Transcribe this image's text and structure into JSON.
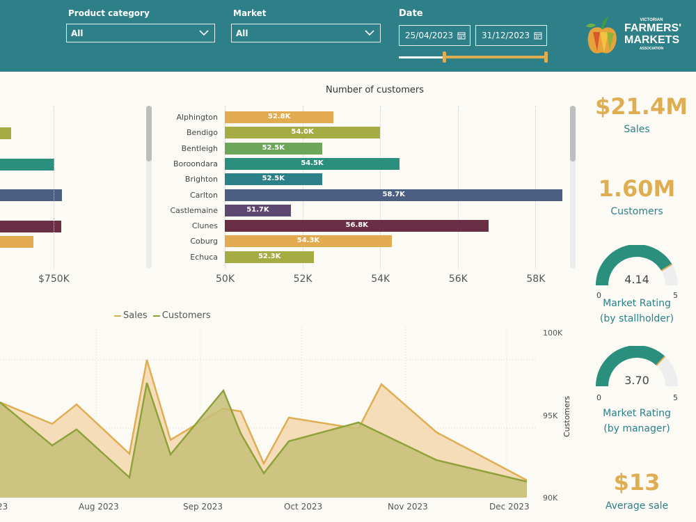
{
  "filters": {
    "product_category": {
      "label": "Product category",
      "value": "All"
    },
    "market": {
      "label": "Market",
      "value": "All"
    },
    "date": {
      "label": "Date",
      "start": "25/04/2023",
      "end": "31/12/2023"
    }
  },
  "logo": {
    "line1": "VICTORIAN",
    "line2": "FARMERS'",
    "line3": "MARKETS",
    "line4": "ASSOCIATION"
  },
  "left_chart": {
    "tick": "$750K",
    "bars": [
      {
        "value": 16,
        "color": "#a5ac43"
      },
      {
        "value": 78,
        "color": "#2a8f7c"
      },
      {
        "value": 89,
        "color": "#4a5f82"
      },
      {
        "value": 88,
        "color": "#6b2f45"
      },
      {
        "value": 48,
        "color": "#e3ab4f"
      }
    ]
  },
  "customers_chart": {
    "title": "Number of customers",
    "ticks": [
      "50K",
      "52K",
      "54K",
      "56K",
      "58K"
    ],
    "bars": [
      {
        "name": "Alphington",
        "value": 52.8,
        "label": "52.8K",
        "color": "#e3ab4f"
      },
      {
        "name": "Bendigo",
        "value": 54.0,
        "label": "54.0K",
        "color": "#a5ac43"
      },
      {
        "name": "Bentleigh",
        "value": 52.5,
        "label": "52.5K",
        "color": "#6da55a"
      },
      {
        "name": "Boroondara",
        "value": 54.5,
        "label": "54.5K",
        "color": "#2a8f7c"
      },
      {
        "name": "Brighton",
        "value": 52.5,
        "label": "52.5K",
        "color": "#2d7f88"
      },
      {
        "name": "Carlton",
        "value": 58.7,
        "label": "58.7K",
        "color": "#4a5f82"
      },
      {
        "name": "Castlemaine",
        "value": 51.7,
        "label": "51.7K",
        "color": "#5d4872"
      },
      {
        "name": "Clunes",
        "value": 56.8,
        "label": "56.8K",
        "color": "#6b2f45"
      },
      {
        "name": "Coburg",
        "value": 54.3,
        "label": "54.3K",
        "color": "#e3ab4f"
      },
      {
        "name": "Echuca",
        "value": 52.3,
        "label": "52.3K",
        "color": "#a5ac43"
      }
    ]
  },
  "kpis": {
    "sales": {
      "value": "$21.4M",
      "label": "Sales"
    },
    "customers": {
      "value": "1.60M",
      "label": "Customers"
    },
    "avg_sale": {
      "value": "$13",
      "label": "Average sale"
    }
  },
  "gauges": {
    "stallholder": {
      "value": "4.14",
      "fraction": 0.828,
      "min": "0",
      "max": "5",
      "label1": "Market Rating",
      "label2": "(by stallholder)"
    },
    "manager": {
      "value": "3.70",
      "fraction": 0.74,
      "min": "0",
      "max": "5",
      "label1": "Market Rating",
      "label2": "(by manager)"
    }
  },
  "area_chart": {
    "legend": {
      "sales": "Sales",
      "customers": "Customers"
    },
    "x_ticks": [
      "Aug 2023",
      "Sep 2023",
      "Oct 2023",
      "Nov 2023",
      "Dec 2023"
    ],
    "y_ticks": [
      "100K",
      "95K",
      "90K"
    ],
    "y_title": "Customers",
    "x_tick_partial": "23"
  },
  "colors": {
    "header": "#2d7f88",
    "accent": "#e0ae52",
    "teal_gauge": "#2a8f7c"
  }
}
